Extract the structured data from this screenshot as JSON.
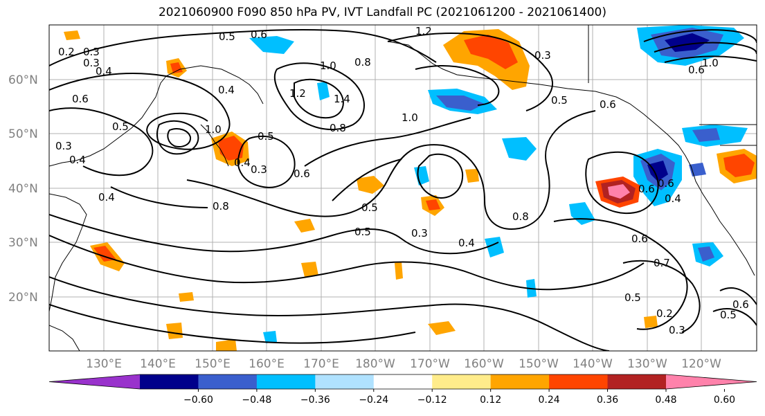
{
  "title": "2021060900 F090 850 hPa PV, IVT Landfall PC (2021061200 - 2021061400)",
  "lat_labels": [
    "60°N",
    "50°N",
    "40°N",
    "30°N",
    "20°N"
  ],
  "lon_labels": [
    "130°E",
    "140°E",
    "150°E",
    "160°E",
    "170°E",
    "180°W",
    "170°W",
    "160°W",
    "150°W",
    "140°W",
    "130°W",
    "120°W"
  ],
  "colorbar": {
    "ticks": [
      "−0.60",
      "−0.48",
      "−0.36",
      "−0.24",
      "−0.12",
      "0.12",
      "0.24",
      "0.36",
      "0.48",
      "0.60"
    ],
    "colors": [
      "#9932cc",
      "#00008b",
      "#3a5fcd",
      "#00bfff",
      "#b0e2ff",
      "#ffffff",
      "#ffec8b",
      "#ffa500",
      "#ff4500",
      "#b22222",
      "#ff82ab"
    ]
  },
  "contour_labels": {
    "l1": "0.2",
    "l2": "0.3",
    "l3": "0.4",
    "l4": "0.5",
    "l5": "0.6",
    "l6": "0.3",
    "l7": "0.4",
    "l8": "0.6",
    "l9": "0.5",
    "l10": "0.3",
    "l11": "0.4",
    "l12": "1.0",
    "l13": "0.8",
    "l14": "1.2",
    "l15": "1.4",
    "l16": "0.8",
    "l17": "1.0",
    "l18": "0.5",
    "l19": "0.3",
    "l20": "0.6",
    "l21": "0.4",
    "l22": "0.8",
    "l23": "0.4",
    "l24": "0.5",
    "l25": "0.3",
    "l26": "0.4",
    "l27": "0.8",
    "l28": "0.5",
    "l29": "0.6",
    "l30": "0.3",
    "l31": "1.0",
    "l32": "0.5",
    "l33": "0.6",
    "l34": "0.7",
    "l35": "0.5",
    "l36": "0.2",
    "l37": "0.3",
    "l38": "0.6",
    "l39": "1.0",
    "l40": "0.6",
    "l41": "1.2",
    "l42": "0.6",
    "l43": "0.6",
    "l44": "0.5",
    "l45": "0.4"
  }
}
